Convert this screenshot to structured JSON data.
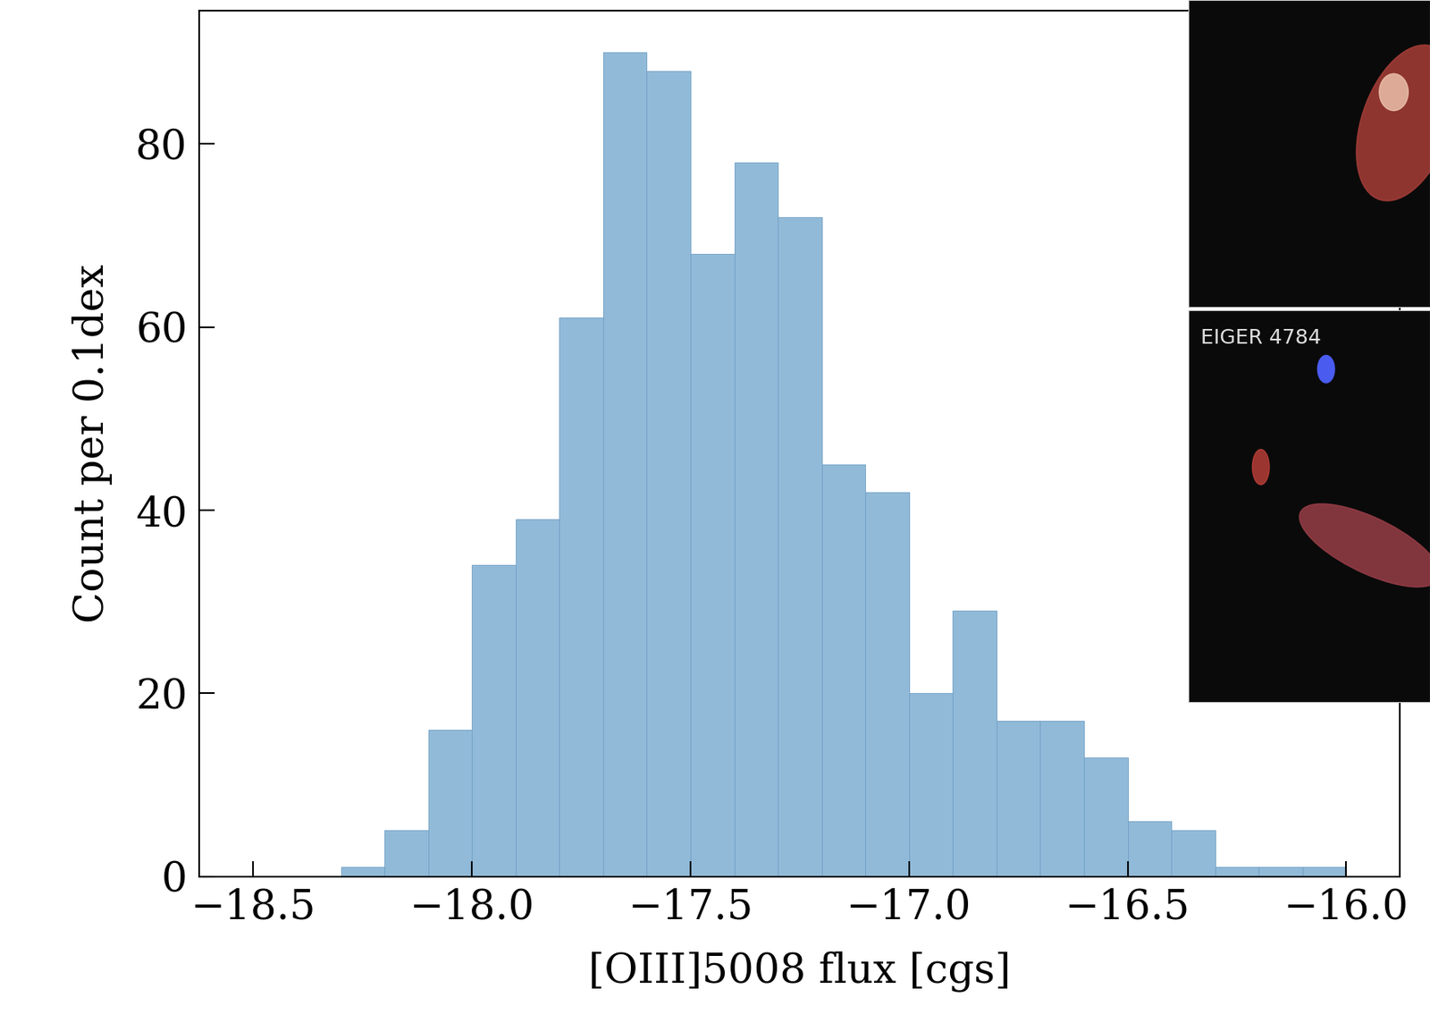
{
  "chart_data": {
    "type": "histogram",
    "x_label": "[OIII]5008 flux [cgs]",
    "y_label": "Count per 0.1dex",
    "bins": [
      -18.3,
      -18.2,
      -18.1,
      -18.0,
      -17.9,
      -17.8,
      -17.7,
      -17.6,
      -17.5,
      -17.4,
      -17.3,
      -17.2,
      -17.1,
      -17.0,
      -16.9,
      -16.8,
      -16.7,
      -16.6,
      -16.5,
      -16.4,
      -16.3,
      -16.2,
      -16.1,
      -16.0
    ],
    "counts": [
      1,
      5,
      16,
      34,
      39,
      61,
      90,
      88,
      68,
      78,
      72,
      45,
      42,
      20,
      29,
      17,
      17,
      13,
      6,
      5,
      1,
      1,
      1
    ],
    "color": "#91bad8",
    "xlim": [
      -18.625,
      -15.877
    ],
    "ylim": [
      0,
      94.6
    ],
    "xticks": [
      {
        "value": -18.5,
        "label": "−18.5"
      },
      {
        "value": -18.0,
        "label": "−18.0"
      },
      {
        "value": -17.5,
        "label": "−17.5"
      },
      {
        "value": -17.0,
        "label": "−17.0"
      },
      {
        "value": -16.5,
        "label": "−16.5"
      },
      {
        "value": -16.0,
        "label": "−16.0"
      }
    ],
    "yticks": [
      0,
      20,
      40,
      60,
      80
    ],
    "annotations": [
      "EIGER 4784"
    ],
    "grid": false
  }
}
